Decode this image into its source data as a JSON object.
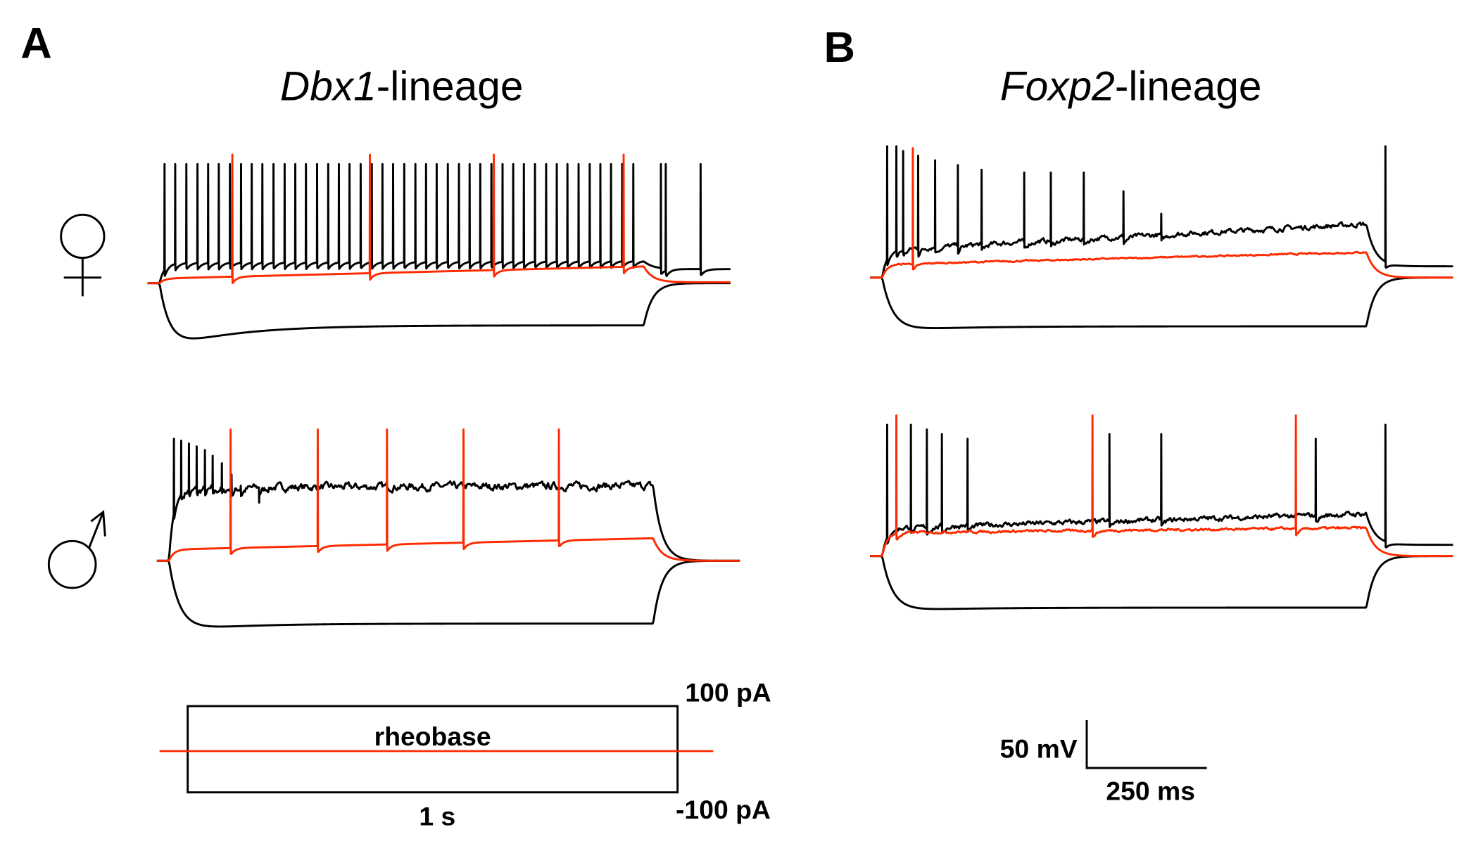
{
  "panels": [
    {
      "letter": "A",
      "title_italic": "Dbx1",
      "title_rest": "-lineage"
    },
    {
      "letter": "B",
      "title_italic": "Foxp2",
      "title_rest": "-lineage"
    }
  ],
  "row_labels": [
    "female",
    "male"
  ],
  "stimulus": {
    "top_label": "100 pA",
    "bottom_label": "-100 pA",
    "middle_label": "rheobase",
    "duration_label": "1 s"
  },
  "scale_bar": {
    "voltage_label": "50 mV",
    "time_label": "250 ms",
    "voltage_mV": 50,
    "time_ms": 250
  },
  "colors": {
    "suprathreshold": "#000000",
    "rheobase": "#ff2a00",
    "hyperpolarizing": "#000000"
  },
  "chart_data": {
    "type": "line",
    "description_units": {
      "x": "ms from step onset (step 0-1000 ms)",
      "y": "mV relative to resting baseline"
    },
    "step_duration_ms": 1000,
    "traces": [
      {
        "panel": "Dbx1-female",
        "kind": "depol",
        "color": "#000000",
        "plateau": [
          22,
          24
        ],
        "peak": 127,
        "post": 15,
        "noise": 0,
        "spikes": [
          10,
          32,
          55,
          78,
          100,
          122,
          145,
          168,
          190,
          212,
          235,
          258,
          280,
          302,
          325,
          348,
          370,
          392,
          415,
          438,
          460,
          482,
          505,
          528,
          550,
          572,
          595,
          618,
          640,
          662,
          685,
          708,
          730,
          752,
          775,
          798,
          820,
          842,
          865,
          888,
          910,
          932,
          955,
          978
        ],
        "post_spikes": [
          1035,
          1045,
          1117
        ]
      },
      {
        "panel": "Dbx1-female",
        "kind": "depol",
        "color": "#ff2a00",
        "plateau": [
          5,
          18
        ],
        "peak": 137,
        "post": 1,
        "noise": 0,
        "spikes": [
          150,
          434,
          690,
          958
        ],
        "post_spikes": []
      },
      {
        "panel": "Dbx1-female",
        "kind": "hyper",
        "color": "#000000",
        "plateau": [
          -45,
          -45
        ],
        "sag": 27,
        "post": 0
      },
      {
        "panel": "Dbx1-male",
        "kind": "depol",
        "color": "#000000",
        "plateau": [
          78,
          80
        ],
        "peak": 130,
        "post": 0,
        "noise": 3,
        "spikes": [
          10,
          25,
          41,
          57,
          74,
          90,
          109,
          129,
          148,
          186
        ],
        "peaks": [
          130,
          128,
          125,
          122,
          118,
          112,
          104,
          92,
          80,
          62
        ],
        "post_spikes": []
      },
      {
        "panel": "Dbx1-male",
        "kind": "depol",
        "color": "#ff2a00",
        "plateau": [
          12,
          24
        ],
        "peak": 140,
        "post": 0,
        "noise": 0,
        "spikes": [
          127,
          307,
          450,
          608,
          805
        ],
        "post_spikes": []
      },
      {
        "panel": "Dbx1-male",
        "kind": "hyper",
        "color": "#000000",
        "plateau": [
          -67,
          -67
        ],
        "sag": 8,
        "post": 0
      },
      {
        "panel": "Foxp2-female",
        "kind": "depol",
        "color": "#000000",
        "plateau": [
          30,
          57
        ],
        "peak": 140,
        "post": 12,
        "noise": 2,
        "spikes": [
          10,
          29,
          43,
          74,
          109,
          156,
          205,
          293,
          348,
          416,
          498,
          576
        ],
        "peaks": [
          140,
          140,
          135,
          130,
          125,
          120,
          115,
          112,
          112,
          112,
          92,
          68
        ],
        "post_spikes": [
          1039
        ]
      },
      {
        "panel": "Foxp2-female",
        "kind": "depol",
        "color": "#ff2a00",
        "plateau": [
          14,
          27
        ],
        "peak": 138,
        "post": 0,
        "noise": 0.6,
        "spikes": [
          63
        ],
        "post_spikes": []
      },
      {
        "panel": "Foxp2-female",
        "kind": "hyper",
        "color": "#000000",
        "plateau": [
          -52,
          -52
        ],
        "sag": 5,
        "post": 0
      },
      {
        "panel": "Foxp2-male",
        "kind": "depol",
        "color": "#000000",
        "plateau": [
          30,
          45
        ],
        "peak": 140,
        "post": 12,
        "noise": 2,
        "spikes": [
          10,
          59,
          92,
          123,
          176,
          469,
          576,
          895
        ],
        "peaks": [
          140,
          140,
          135,
          130,
          125,
          130,
          130,
          125
        ],
        "post_spikes": [
          1039
        ]
      },
      {
        "panel": "Foxp2-male",
        "kind": "depol",
        "color": "#ff2a00",
        "plateau": [
          25,
          30
        ],
        "peak": 150,
        "post": 0,
        "noise": 1,
        "spikes": [
          29,
          434,
          854
        ],
        "post_spikes": []
      },
      {
        "panel": "Foxp2-male",
        "kind": "hyper",
        "color": "#000000",
        "plateau": [
          -55,
          -55
        ],
        "sag": 4,
        "post": 0
      }
    ]
  }
}
